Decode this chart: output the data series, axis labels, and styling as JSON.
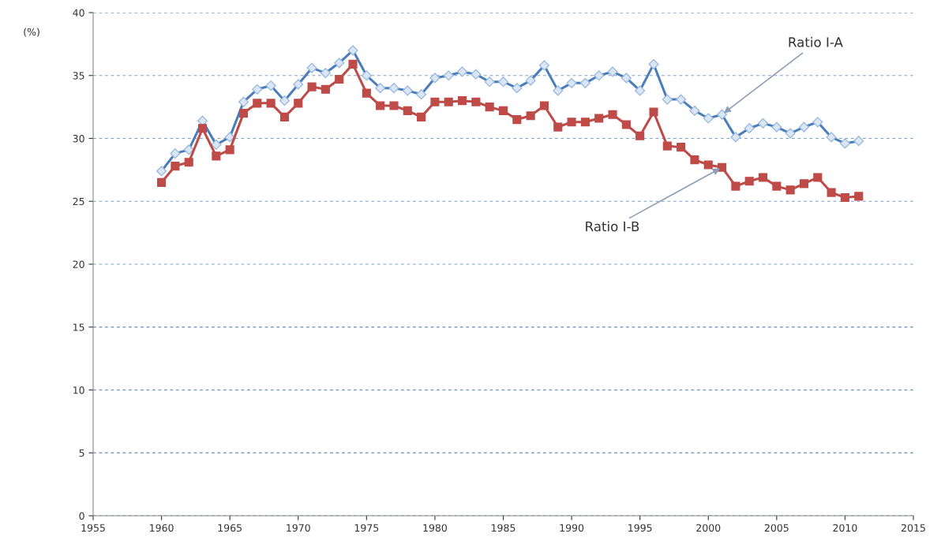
{
  "chart_data": {
    "type": "line",
    "ylabel": "(%)",
    "x": [
      1960,
      1961,
      1962,
      1963,
      1964,
      1965,
      1966,
      1967,
      1968,
      1969,
      1970,
      1971,
      1972,
      1973,
      1974,
      1975,
      1976,
      1977,
      1978,
      1979,
      1980,
      1981,
      1982,
      1983,
      1984,
      1985,
      1986,
      1987,
      1988,
      1989,
      1990,
      1991,
      1992,
      1993,
      1994,
      1995,
      1996,
      1997,
      1998,
      1999,
      2000,
      2001,
      2002,
      2003,
      2004,
      2005,
      2006,
      2007,
      2008,
      2009,
      2010,
      2011
    ],
    "series": [
      {
        "color": "#4a7ebb",
        "marker": "diamond",
        "values": [
          27.4,
          28.8,
          29.1,
          31.4,
          29.5,
          30.1,
          32.9,
          33.9,
          34.2,
          33.0,
          34.3,
          35.6,
          35.2,
          36.0,
          37.0,
          35.0,
          34.0,
          34.0,
          33.8,
          33.5,
          34.8,
          35.0,
          35.3,
          35.1,
          34.5,
          34.5,
          34.0,
          34.6,
          35.8,
          33.8,
          34.4,
          34.4,
          35.0,
          35.3,
          34.8,
          33.8,
          35.9,
          33.1,
          33.1,
          32.2,
          31.6,
          31.9,
          30.1,
          30.8,
          31.2,
          30.9,
          30.4,
          30.9,
          31.3,
          30.1,
          29.6,
          29.8
        ]
      },
      {
        "color": "#be4b48",
        "marker": "square",
        "values": [
          26.5,
          27.8,
          28.1,
          30.8,
          28.6,
          29.1,
          32.0,
          32.8,
          32.8,
          31.7,
          32.8,
          34.1,
          33.9,
          34.7,
          35.9,
          33.6,
          32.6,
          32.6,
          32.2,
          31.7,
          32.9,
          32.9,
          33.0,
          32.9,
          32.5,
          32.2,
          31.5,
          31.8,
          32.6,
          30.9,
          31.3,
          31.3,
          31.6,
          31.9,
          31.1,
          30.2,
          32.1,
          29.4,
          29.3,
          28.3,
          27.9,
          27.7,
          26.2,
          26.6,
          26.9,
          26.2,
          25.9,
          26.4,
          26.9,
          25.7,
          25.3,
          25.4
        ]
      }
    ],
    "annotations": [
      {
        "text": "Ratio I-A",
        "x": 2001,
        "y": 31.9
      },
      {
        "text": "Ratio I-B",
        "x": 2001,
        "y": 27.7
      }
    ],
    "xlim": [
      1955,
      2015
    ],
    "xticks": [
      1955,
      1960,
      1965,
      1970,
      1975,
      1980,
      1985,
      1990,
      1995,
      2000,
      2005,
      2010,
      2015
    ],
    "ylim": [
      0,
      40
    ],
    "yticks": [
      0,
      5,
      10,
      15,
      20,
      25,
      30,
      35,
      40
    ],
    "grid": "y",
    "legend": false
  }
}
